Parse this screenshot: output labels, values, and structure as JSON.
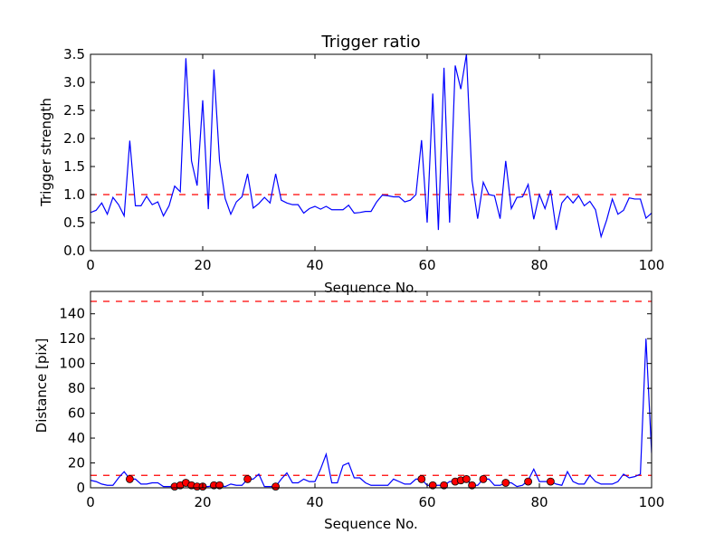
{
  "chart_data": [
    {
      "type": "line",
      "title": "Trigger ratio",
      "xlabel": "Sequence No.",
      "ylabel": "Trigger strength",
      "xlim": [
        0,
        100
      ],
      "ylim": [
        0,
        3.5
      ],
      "xticks": [
        "0",
        "20",
        "40",
        "60",
        "80",
        "100"
      ],
      "yticks": [
        "0.0",
        "0.5",
        "1.0",
        "1.5",
        "2.0",
        "2.5",
        "3.0",
        "3.5"
      ],
      "grid": false,
      "series": [
        {
          "color": "#0000ff",
          "x": [
            0,
            1,
            2,
            3,
            4,
            5,
            6,
            7,
            8,
            9,
            10,
            11,
            12,
            13,
            14,
            15,
            16,
            17,
            18,
            19,
            20,
            21,
            22,
            23,
            24,
            25,
            26,
            27,
            28,
            29,
            30,
            31,
            32,
            33,
            34,
            35,
            36,
            37,
            38,
            39,
            40,
            41,
            42,
            43,
            44,
            45,
            46,
            47,
            48,
            49,
            50,
            51,
            52,
            53,
            54,
            55,
            56,
            57,
            58,
            59,
            60,
            61,
            62,
            63,
            64,
            65,
            66,
            67,
            68,
            69,
            70,
            71,
            72,
            73,
            74,
            75,
            76,
            77,
            78,
            79,
            80,
            81,
            82,
            83,
            84,
            85,
            86,
            87,
            88,
            89,
            90,
            91,
            92,
            93,
            94,
            95,
            96,
            97,
            98,
            99,
            100
          ],
          "values": [
            0.68,
            0.72,
            0.85,
            0.65,
            0.95,
            0.82,
            0.62,
            1.96,
            0.8,
            0.8,
            0.97,
            0.82,
            0.87,
            0.62,
            0.8,
            1.15,
            1.05,
            3.43,
            1.6,
            1.16,
            2.68,
            0.74,
            3.23,
            1.6,
            0.93,
            0.65,
            0.87,
            0.96,
            1.37,
            0.76,
            0.84,
            0.95,
            0.85,
            1.37,
            0.9,
            0.85,
            0.82,
            0.82,
            0.67,
            0.75,
            0.79,
            0.74,
            0.79,
            0.73,
            0.73,
            0.73,
            0.81,
            0.67,
            0.68,
            0.7,
            0.7,
            0.87,
            0.99,
            0.98,
            0.96,
            0.96,
            0.87,
            0.9,
            1.0,
            1.97,
            0.5,
            2.8,
            0.37,
            3.26,
            0.5,
            3.3,
            2.88,
            3.5,
            1.25,
            0.57,
            1.22,
            1.0,
            0.98,
            0.57,
            1.6,
            0.75,
            0.95,
            0.96,
            1.18,
            0.56,
            1.0,
            0.75,
            1.08,
            0.37,
            0.85,
            0.97,
            0.85,
            0.98,
            0.8,
            0.88,
            0.73,
            0.25,
            0.55,
            0.92,
            0.65,
            0.72,
            0.94,
            0.92,
            0.92,
            0.58,
            0.67
          ]
        }
      ],
      "reference_lines": [
        {
          "y": 1.0,
          "color": "#ff0000",
          "style": "dashed"
        }
      ]
    },
    {
      "type": "line",
      "xlabel": "Sequence No.",
      "ylabel": "Distance [pix]",
      "xlim": [
        0,
        100
      ],
      "ylim": [
        0,
        158
      ],
      "xticks": [
        "0",
        "20",
        "40",
        "60",
        "80",
        "100"
      ],
      "yticks": [
        "0",
        "20",
        "40",
        "60",
        "80",
        "100",
        "120",
        "140"
      ],
      "grid": false,
      "series": [
        {
          "color": "#0000ff",
          "x": [
            0,
            1,
            2,
            3,
            4,
            5,
            6,
            7,
            8,
            9,
            10,
            11,
            12,
            13,
            14,
            15,
            16,
            17,
            18,
            19,
            20,
            21,
            22,
            23,
            24,
            25,
            26,
            27,
            28,
            29,
            30,
            31,
            32,
            33,
            34,
            35,
            36,
            37,
            38,
            39,
            40,
            41,
            42,
            43,
            44,
            45,
            46,
            47,
            48,
            49,
            50,
            51,
            52,
            53,
            54,
            55,
            56,
            57,
            58,
            59,
            60,
            61,
            62,
            63,
            64,
            65,
            66,
            67,
            68,
            69,
            70,
            71,
            72,
            73,
            74,
            75,
            76,
            77,
            78,
            79,
            80,
            81,
            82,
            83,
            84,
            85,
            86,
            87,
            88,
            89,
            90,
            91,
            92,
            93,
            94,
            95,
            96,
            97,
            98,
            99,
            100
          ],
          "values": [
            6,
            5,
            3,
            2,
            2,
            8,
            13,
            7,
            7,
            3,
            3,
            4,
            4,
            1,
            1,
            1,
            1,
            4,
            2,
            1,
            1,
            1,
            2,
            2,
            1,
            3,
            2,
            2,
            7,
            7,
            11,
            1,
            1,
            1,
            7,
            12,
            4,
            4,
            7,
            5,
            5,
            15,
            27,
            4,
            4,
            18,
            20,
            8,
            8,
            4,
            2,
            2,
            2,
            2,
            7,
            5,
            3,
            3,
            7,
            7,
            2,
            2,
            2,
            2,
            5,
            5,
            6,
            7,
            2,
            2,
            7,
            7,
            2,
            2,
            4,
            4,
            1,
            2,
            6,
            15,
            5,
            5,
            5,
            3,
            2,
            13,
            5,
            3,
            3,
            10,
            5,
            3,
            3,
            3,
            5,
            11,
            8,
            9,
            11,
            120,
            28
          ]
        }
      ],
      "markers": {
        "color": "#ff0000",
        "x": [
          7,
          15,
          16,
          17,
          18,
          19,
          20,
          22,
          23,
          28,
          33,
          59,
          61,
          63,
          65,
          66,
          67,
          68,
          70,
          74,
          78,
          82
        ],
        "values": [
          7,
          1,
          2,
          4,
          2,
          1,
          1,
          2,
          2,
          7,
          1,
          7,
          2,
          2,
          5,
          6,
          7,
          2,
          7,
          4,
          5,
          5
        ]
      },
      "reference_lines": [
        {
          "y": 10,
          "color": "#ff0000",
          "style": "dashed"
        },
        {
          "y": 150,
          "color": "#ff0000",
          "style": "dashed"
        }
      ]
    }
  ]
}
